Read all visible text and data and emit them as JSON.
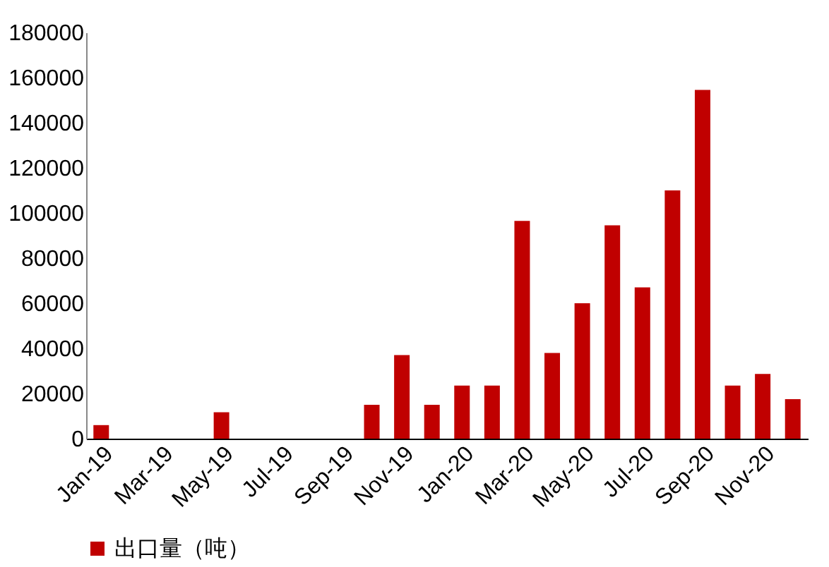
{
  "chart_data": {
    "type": "bar",
    "categories": [
      "Jan-19",
      null,
      "Mar-19",
      null,
      "May-19",
      null,
      "Jul-19",
      null,
      "Sep-19",
      null,
      "Nov-19",
      null,
      "Jan-20",
      null,
      "Mar-20",
      null,
      "May-20",
      null,
      "Jul-20",
      null,
      "Sep-20",
      null,
      "Nov-20",
      null
    ],
    "series": [
      {
        "name": "出口量（吨）",
        "color": "#c00000",
        "values": [
          6000,
          0,
          0,
          0,
          11700,
          0,
          0,
          0,
          0,
          15000,
          37000,
          15000,
          23500,
          23500,
          96500,
          38000,
          60000,
          94500,
          67000,
          110000,
          154500,
          23500,
          28700,
          17500
        ]
      }
    ],
    "ylim": [
      0,
      180000
    ],
    "yticks": [
      0,
      20000,
      40000,
      60000,
      80000,
      100000,
      120000,
      140000,
      160000,
      180000
    ],
    "grid": false,
    "legend": "bottom"
  }
}
